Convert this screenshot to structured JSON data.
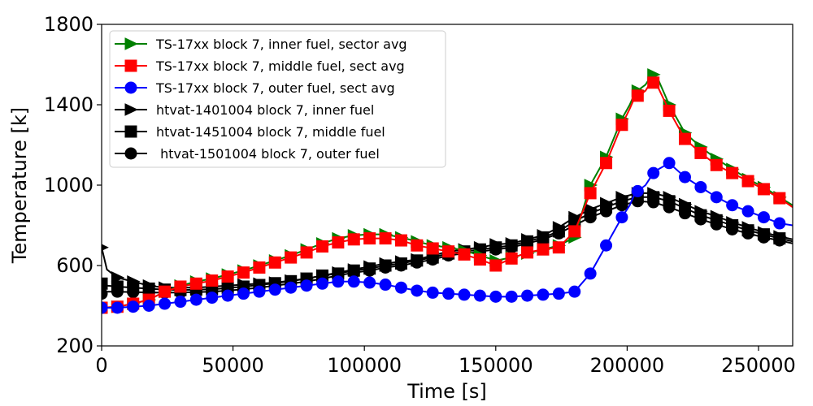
{
  "chart_data": {
    "type": "line",
    "title": "",
    "xlabel": "Time [s]",
    "ylabel": "Temperature [k]",
    "xlim": [
      0,
      263000
    ],
    "ylim": [
      200,
      1800
    ],
    "xticks": [
      0,
      50000,
      100000,
      150000,
      200000,
      250000
    ],
    "xtick_labels": [
      "0",
      "50000",
      "100000",
      "150000",
      "200000",
      "250000"
    ],
    "yticks": [
      200,
      600,
      1000,
      1400,
      1800
    ],
    "ytick_labels": [
      "200",
      "600",
      "1000",
      "1400",
      "1800"
    ],
    "grid": false,
    "legend_position": "upper-left",
    "series": [
      {
        "name": "TS-17xx block 7, inner fuel, sector avg",
        "color": "#008000",
        "marker": "triangle-right",
        "x": [
          0,
          6000,
          12000,
          18000,
          24000,
          30000,
          36000,
          42000,
          48000,
          54000,
          60000,
          66000,
          72000,
          78000,
          84000,
          90000,
          96000,
          102000,
          108000,
          114000,
          120000,
          126000,
          132000,
          138000,
          144000,
          150000,
          156000,
          162000,
          168000,
          174000,
          180000,
          186000,
          192000,
          198000,
          201000,
          203000,
          204000,
          205000,
          206000,
          207000,
          208000,
          209000,
          210000,
          212000,
          216000,
          222000,
          228000,
          234000,
          240000,
          246000,
          252000,
          258000,
          263000
        ],
        "y": [
          390,
          395,
          410,
          430,
          470,
          500,
          520,
          535,
          555,
          575,
          600,
          625,
          650,
          680,
          710,
          735,
          750,
          755,
          755,
          740,
          720,
          700,
          690,
          675,
          650,
          625,
          640,
          660,
          680,
          700,
          740,
          1000,
          1140,
          1330,
          1400,
          1460,
          1470,
          1480,
          1490,
          1500,
          1520,
          1540,
          1550,
          1520,
          1400,
          1260,
          1190,
          1130,
          1080,
          1030,
          990,
          940,
          900
        ]
      },
      {
        "name": "TS-17xx block 7, middle fuel, sect avg",
        "color": "#ff0000",
        "marker": "square",
        "x": [
          0,
          6000,
          12000,
          18000,
          24000,
          30000,
          36000,
          42000,
          48000,
          54000,
          60000,
          66000,
          72000,
          78000,
          84000,
          90000,
          96000,
          102000,
          108000,
          114000,
          120000,
          126000,
          132000,
          138000,
          144000,
          150000,
          156000,
          162000,
          168000,
          174000,
          180000,
          186000,
          192000,
          198000,
          201000,
          203000,
          204000,
          205000,
          206000,
          207000,
          208000,
          209000,
          210000,
          212000,
          216000,
          222000,
          228000,
          234000,
          240000,
          246000,
          252000,
          258000,
          263000
        ],
        "y": [
          390,
          395,
          410,
          430,
          470,
          495,
          510,
          525,
          545,
          565,
          590,
          615,
          640,
          665,
          695,
          715,
          730,
          735,
          735,
          725,
          700,
          685,
          670,
          655,
          630,
          600,
          635,
          665,
          680,
          690,
          770,
          960,
          1110,
          1300,
          1380,
          1440,
          1445,
          1450,
          1460,
          1470,
          1490,
          1500,
          1510,
          1480,
          1370,
          1230,
          1160,
          1100,
          1060,
          1020,
          980,
          935,
          890
        ]
      },
      {
        "name": "TS-17xx block 7, outer fuel, sect avg",
        "color": "#0000ff",
        "marker": "circle",
        "x": [
          0,
          6000,
          12000,
          18000,
          24000,
          30000,
          36000,
          42000,
          48000,
          54000,
          60000,
          66000,
          72000,
          78000,
          84000,
          90000,
          96000,
          102000,
          108000,
          114000,
          120000,
          126000,
          132000,
          138000,
          144000,
          150000,
          156000,
          162000,
          168000,
          174000,
          180000,
          186000,
          192000,
          198000,
          201000,
          203000,
          204000,
          205000,
          206000,
          207000,
          208000,
          209000,
          210000,
          212000,
          216000,
          222000,
          228000,
          234000,
          240000,
          246000,
          252000,
          258000,
          263000
        ],
        "y": [
          390,
          390,
          395,
          400,
          410,
          420,
          430,
          440,
          450,
          460,
          470,
          480,
          490,
          500,
          510,
          520,
          520,
          515,
          505,
          490,
          475,
          465,
          460,
          455,
          450,
          445,
          445,
          450,
          455,
          460,
          470,
          560,
          700,
          840,
          900,
          960,
          970,
          980,
          990,
          1000,
          1020,
          1040,
          1060,
          1080,
          1110,
          1040,
          990,
          940,
          900,
          870,
          840,
          810,
          800
        ]
      },
      {
        "name": "htvat-1401004 block 7, inner fuel",
        "color": "#000000",
        "marker": "triangle-right",
        "x": [
          0,
          2000,
          6000,
          12000,
          18000,
          24000,
          30000,
          36000,
          42000,
          48000,
          54000,
          60000,
          66000,
          72000,
          78000,
          84000,
          90000,
          96000,
          102000,
          108000,
          114000,
          120000,
          126000,
          132000,
          138000,
          144000,
          150000,
          156000,
          162000,
          168000,
          174000,
          180000,
          186000,
          192000,
          198000,
          204000,
          210000,
          216000,
          222000,
          228000,
          234000,
          240000,
          246000,
          252000,
          258000,
          263000
        ],
        "y": [
          690,
          580,
          540,
          520,
          500,
          490,
          490,
          490,
          495,
          500,
          505,
          510,
          515,
          525,
          535,
          550,
          565,
          580,
          595,
          610,
          620,
          630,
          650,
          670,
          680,
          690,
          705,
          710,
          730,
          750,
          790,
          840,
          880,
          910,
          940,
          960,
          960,
          940,
          905,
          870,
          845,
          815,
          790,
          765,
          745,
          730
        ]
      },
      {
        "name": "htvat-1451004 block 7, middle fuel",
        "color": "#000000",
        "marker": "square",
        "x": [
          0,
          2000,
          6000,
          12000,
          18000,
          24000,
          30000,
          36000,
          42000,
          48000,
          54000,
          60000,
          66000,
          72000,
          78000,
          84000,
          90000,
          96000,
          102000,
          108000,
          114000,
          120000,
          126000,
          132000,
          138000,
          144000,
          150000,
          156000,
          162000,
          168000,
          174000,
          180000,
          186000,
          192000,
          198000,
          204000,
          210000,
          216000,
          222000,
          228000,
          234000,
          240000,
          246000,
          252000,
          258000,
          263000
        ],
        "y": [
          510,
          500,
          495,
          490,
          485,
          480,
          478,
          480,
          482,
          488,
          495,
          503,
          512,
          522,
          535,
          550,
          560,
          575,
          585,
          600,
          610,
          625,
          640,
          660,
          670,
          680,
          690,
          700,
          720,
          740,
          770,
          820,
          860,
          890,
          920,
          940,
          940,
          920,
          885,
          850,
          825,
          800,
          775,
          755,
          735,
          720
        ]
      },
      {
        "name": " htvat-1501004 block 7, outer fuel",
        "color": "#000000",
        "marker": "circle",
        "x": [
          0,
          2000,
          6000,
          12000,
          18000,
          24000,
          30000,
          36000,
          42000,
          48000,
          54000,
          60000,
          66000,
          72000,
          78000,
          84000,
          90000,
          96000,
          102000,
          108000,
          114000,
          120000,
          126000,
          132000,
          138000,
          144000,
          150000,
          156000,
          162000,
          168000,
          174000,
          180000,
          186000,
          192000,
          198000,
          204000,
          210000,
          216000,
          222000,
          228000,
          234000,
          240000,
          246000,
          252000,
          258000,
          263000
        ],
        "y": [
          460,
          470,
          470,
          468,
          466,
          465,
          466,
          468,
          470,
          475,
          482,
          490,
          500,
          510,
          520,
          535,
          550,
          565,
          575,
          590,
          600,
          615,
          630,
          650,
          660,
          670,
          680,
          690,
          710,
          730,
          760,
          800,
          840,
          870,
          900,
          920,
          915,
          890,
          860,
          830,
          805,
          780,
          760,
          740,
          725,
          710
        ]
      }
    ]
  }
}
